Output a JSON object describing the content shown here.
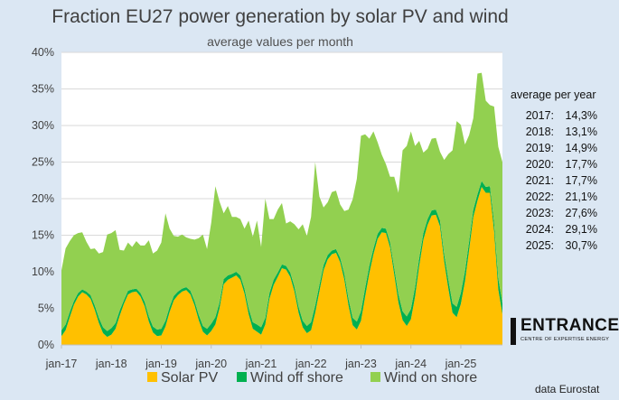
{
  "chart_data": {
    "type": "area",
    "stacked": true,
    "title": "Fraction EU27 power generation by solar PV and wind",
    "subtitle": "average values per month",
    "ylim": [
      0,
      40
    ],
    "yticks": [
      0,
      5,
      10,
      15,
      20,
      25,
      30,
      35,
      40
    ],
    "ytick_labels": [
      "0%",
      "5%",
      "10%",
      "15%",
      "20%",
      "25%",
      "30%",
      "35%",
      "40%"
    ],
    "x_start": "jan-17",
    "xtick_labels": [
      "jan-17",
      "jan-18",
      "jan-19",
      "jan-20",
      "jan-21",
      "jan-22",
      "jan-23",
      "jan-24",
      "jan-25"
    ],
    "legend_position": "bottom",
    "series": [
      {
        "name": "Solar PV",
        "color": "#ffc000",
        "values": [
          1.2,
          2.0,
          3.8,
          5.5,
          6.6,
          7.2,
          6.9,
          6.3,
          4.8,
          3.0,
          1.6,
          1.1,
          1.4,
          2.2,
          4.0,
          5.6,
          6.9,
          7.2,
          7.3,
          6.6,
          5.3,
          3.2,
          1.7,
          1.2,
          1.3,
          2.5,
          4.5,
          6.1,
          6.8,
          7.3,
          7.5,
          6.9,
          5.4,
          3.4,
          1.8,
          1.3,
          1.9,
          2.8,
          5.0,
          8.3,
          8.9,
          9.2,
          9.5,
          8.9,
          7.0,
          4.2,
          2.2,
          1.8,
          1.4,
          2.8,
          6.3,
          8.2,
          9.3,
          10.5,
          10.3,
          9.3,
          7.3,
          4.4,
          2.4,
          1.6,
          2.0,
          4.4,
          7.3,
          10.2,
          11.7,
          12.4,
          12.6,
          11.3,
          8.9,
          5.4,
          2.7,
          2.1,
          3.3,
          6.6,
          9.8,
          12.4,
          14.5,
          15.4,
          15.3,
          13.3,
          9.6,
          5.8,
          3.4,
          2.6,
          3.5,
          6.6,
          10.8,
          14.4,
          16.4,
          17.7,
          17.8,
          16.2,
          11.4,
          7.7,
          4.4,
          3.8,
          5.6,
          8.7,
          13.0,
          17.5,
          19.7,
          21.6,
          20.8,
          20.8,
          15.5,
          7.6,
          4.2
        ]
      },
      {
        "name": "Wind off shore",
        "color": "#00b050",
        "values": [
          0.8,
          0.8,
          0.7,
          0.5,
          0.5,
          0.4,
          0.4,
          0.5,
          0.6,
          0.7,
          0.8,
          0.8,
          0.9,
          0.8,
          0.7,
          0.5,
          0.5,
          0.4,
          0.4,
          0.5,
          0.6,
          0.7,
          0.8,
          0.9,
          0.9,
          0.8,
          0.7,
          0.6,
          0.5,
          0.4,
          0.4,
          0.5,
          0.6,
          0.7,
          0.8,
          0.9,
          1.0,
          1.0,
          0.8,
          0.7,
          0.6,
          0.5,
          0.5,
          0.6,
          0.7,
          0.8,
          0.9,
          1.0,
          1.0,
          0.9,
          0.8,
          0.7,
          0.6,
          0.5,
          0.5,
          0.6,
          0.7,
          0.8,
          0.9,
          1.0,
          1.1,
          1.0,
          0.9,
          0.7,
          0.6,
          0.5,
          0.5,
          0.6,
          0.8,
          0.9,
          1.0,
          1.1,
          1.3,
          1.2,
          1.0,
          0.8,
          0.7,
          0.6,
          0.6,
          0.7,
          0.9,
          1.1,
          1.2,
          1.3,
          1.4,
          1.3,
          1.1,
          0.9,
          0.8,
          0.7,
          0.7,
          0.8,
          1.0,
          1.2,
          1.3,
          1.4,
          1.5,
          1.4,
          1.2,
          1.0,
          0.9,
          0.8,
          0.8,
          0.9,
          1.2,
          1.5,
          1.5
        ]
      },
      {
        "name": "Wind on shore",
        "color": "#92d050",
        "values": [
          8.2,
          10.4,
          9.7,
          9.0,
          8.2,
          7.8,
          6.8,
          6.3,
          7.8,
          8.8,
          10.3,
          13.2,
          13.0,
          12.7,
          8.3,
          6.8,
          6.6,
          5.8,
          6.5,
          6.5,
          7.7,
          10.4,
          10.0,
          10.8,
          11.8,
          14.7,
          10.7,
          8.2,
          7.5,
          7.4,
          6.8,
          7.1,
          8.4,
          10.5,
          12.5,
          10.9,
          13.8,
          17.9,
          13.8,
          9.0,
          9.5,
          7.8,
          7.5,
          7.7,
          8.2,
          12.0,
          11.7,
          14.2,
          11.0,
          16.3,
          10.1,
          8.3,
          8.6,
          8.4,
          5.8,
          7.0,
          8.5,
          10.6,
          13.2,
          12.3,
          14.4,
          19.6,
          12.1,
          7.9,
          7.2,
          8.0,
          8.0,
          7.3,
          8.6,
          12.2,
          16.2,
          19.5,
          24.0,
          21.0,
          17.4,
          16.0,
          12.5,
          10.0,
          8.8,
          9.0,
          12.5,
          13.9,
          22.0,
          23.3,
          24.3,
          19.3,
          16.0,
          11.0,
          9.6,
          9.8,
          9.8,
          9.4,
          12.9,
          17.2,
          20.9,
          25.4,
          23.0,
          17.3,
          14.5,
          12.5,
          16.5,
          14.8,
          11.8,
          11.1,
          15.9,
          18.0,
          19.3
        ]
      }
    ],
    "annotation": {
      "title": "average per year",
      "rows": [
        {
          "year": "2017:",
          "value": "14,3%"
        },
        {
          "year": "2018:",
          "value": "13,1%"
        },
        {
          "year": "2019:",
          "value": "14,9%"
        },
        {
          "year": "2020:",
          "value": "17,7%"
        },
        {
          "year": "2021:",
          "value": "17,7%"
        },
        {
          "year": "2022:",
          "value": "21,1%"
        },
        {
          "year": "2023:",
          "value": "27,6%"
        },
        {
          "year": "2024:",
          "value": "29,1%"
        },
        {
          "year": "2025:",
          "value": "30,7%"
        }
      ]
    }
  },
  "logo": {
    "name": "ENTRANCE",
    "tagline": "CENTRE OF EXPERTISE ENERGY"
  },
  "source": "data Eurostat",
  "colors": {
    "background": "#dbe7f3",
    "plot_background": "#ffffff",
    "axis_text": "#404040"
  }
}
